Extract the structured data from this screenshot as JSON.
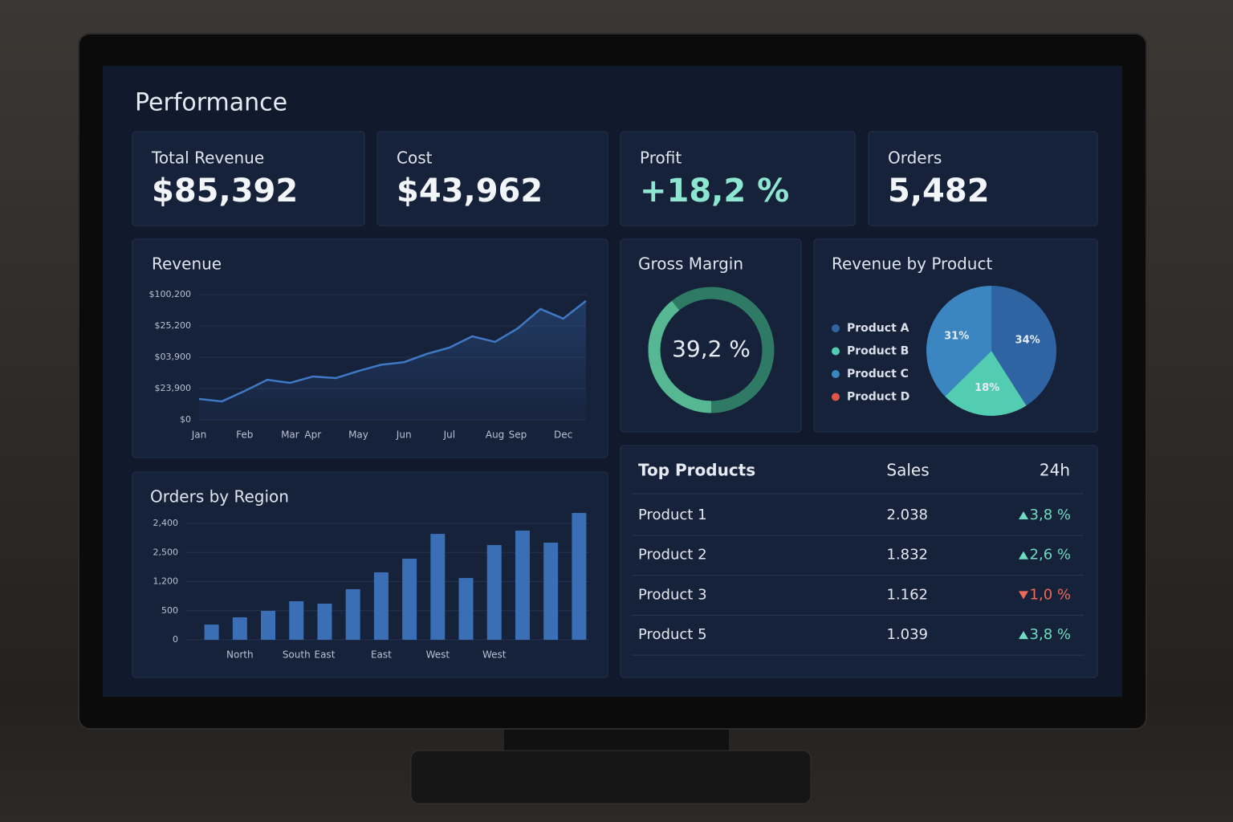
{
  "header": {
    "title": "Performance"
  },
  "kpis": [
    {
      "label": "Total Revenue",
      "value": "$85,392"
    },
    {
      "label": "Cost",
      "value": "$43,962"
    },
    {
      "label": "Profit",
      "value": "+18,2 %",
      "color": "#8de6cf"
    },
    {
      "label": "Orders",
      "value": "5,482"
    }
  ],
  "chart_data": [
    {
      "type": "line",
      "title": "Revenue",
      "y_axis_labels": [
        "$100,200",
        "$25,200",
        "$03,900",
        "$23,900",
        "$0"
      ],
      "categories": [
        "Jan",
        null,
        "Feb",
        null,
        "Mar",
        "Apr",
        null,
        "May",
        null,
        "Jun",
        null,
        "Jul",
        null,
        "Aug",
        "Sep",
        null,
        "Dec",
        null
      ],
      "values": [
        16.7,
        14.7,
        23,
        32,
        29.5,
        34.6,
        33.3,
        39,
        44,
        46,
        52.6,
        57.7,
        66.7,
        62.2,
        73,
        88.5,
        80.8,
        95
      ],
      "ylim": [
        0,
        100
      ],
      "color": "#3f78c4",
      "grid": true
    },
    {
      "type": "bar",
      "title": "Orders by Region",
      "y_axis_labels": [
        "2,400",
        "2,500",
        "1,200",
        "500",
        "0"
      ],
      "categories": [
        null,
        "North",
        null,
        "South",
        "East",
        null,
        "East",
        null,
        "West",
        null,
        "West",
        null,
        null,
        null
      ],
      "values": [
        12,
        17.7,
        22.8,
        30.4,
        28.5,
        39.9,
        53.2,
        63.9,
        83.5,
        48.7,
        74.7,
        86.1,
        76.6,
        100
      ],
      "ylim": [
        0,
        100
      ],
      "color": "#3a6fb5",
      "grid": true
    },
    {
      "type": "donut",
      "title": "Gross Margin",
      "values": [
        39.2
      ],
      "value_labels": [
        "39,2 %"
      ],
      "color": "#55b893",
      "track_color": "#2e7a64"
    },
    {
      "type": "pie",
      "title": "Revenue by Product",
      "categories": [
        "Product A",
        "Product B",
        "Product C",
        "Product D"
      ],
      "values": [
        34,
        18,
        31,
        null
      ],
      "value_labels": [
        "34%",
        "18%",
        "31%",
        null
      ],
      "colors": [
        "#2f64a3",
        "#52cdb1",
        "#3b86c0",
        "#e0554a"
      ]
    }
  ],
  "table": {
    "columns": [
      "Top Products",
      "Sales",
      "24h"
    ],
    "rows": [
      {
        "name": "Product 1",
        "sales": "2.038",
        "change": "3,8 %",
        "trend": "up"
      },
      {
        "name": "Product 2",
        "sales": "1.832",
        "change": "2,6 %",
        "trend": "up"
      },
      {
        "name": "Product 3",
        "sales": "1.162",
        "change": "1,0 %",
        "trend": "down"
      },
      {
        "name": "Product 5",
        "sales": "1.039",
        "change": "3,8 %",
        "trend": "up"
      }
    ]
  }
}
